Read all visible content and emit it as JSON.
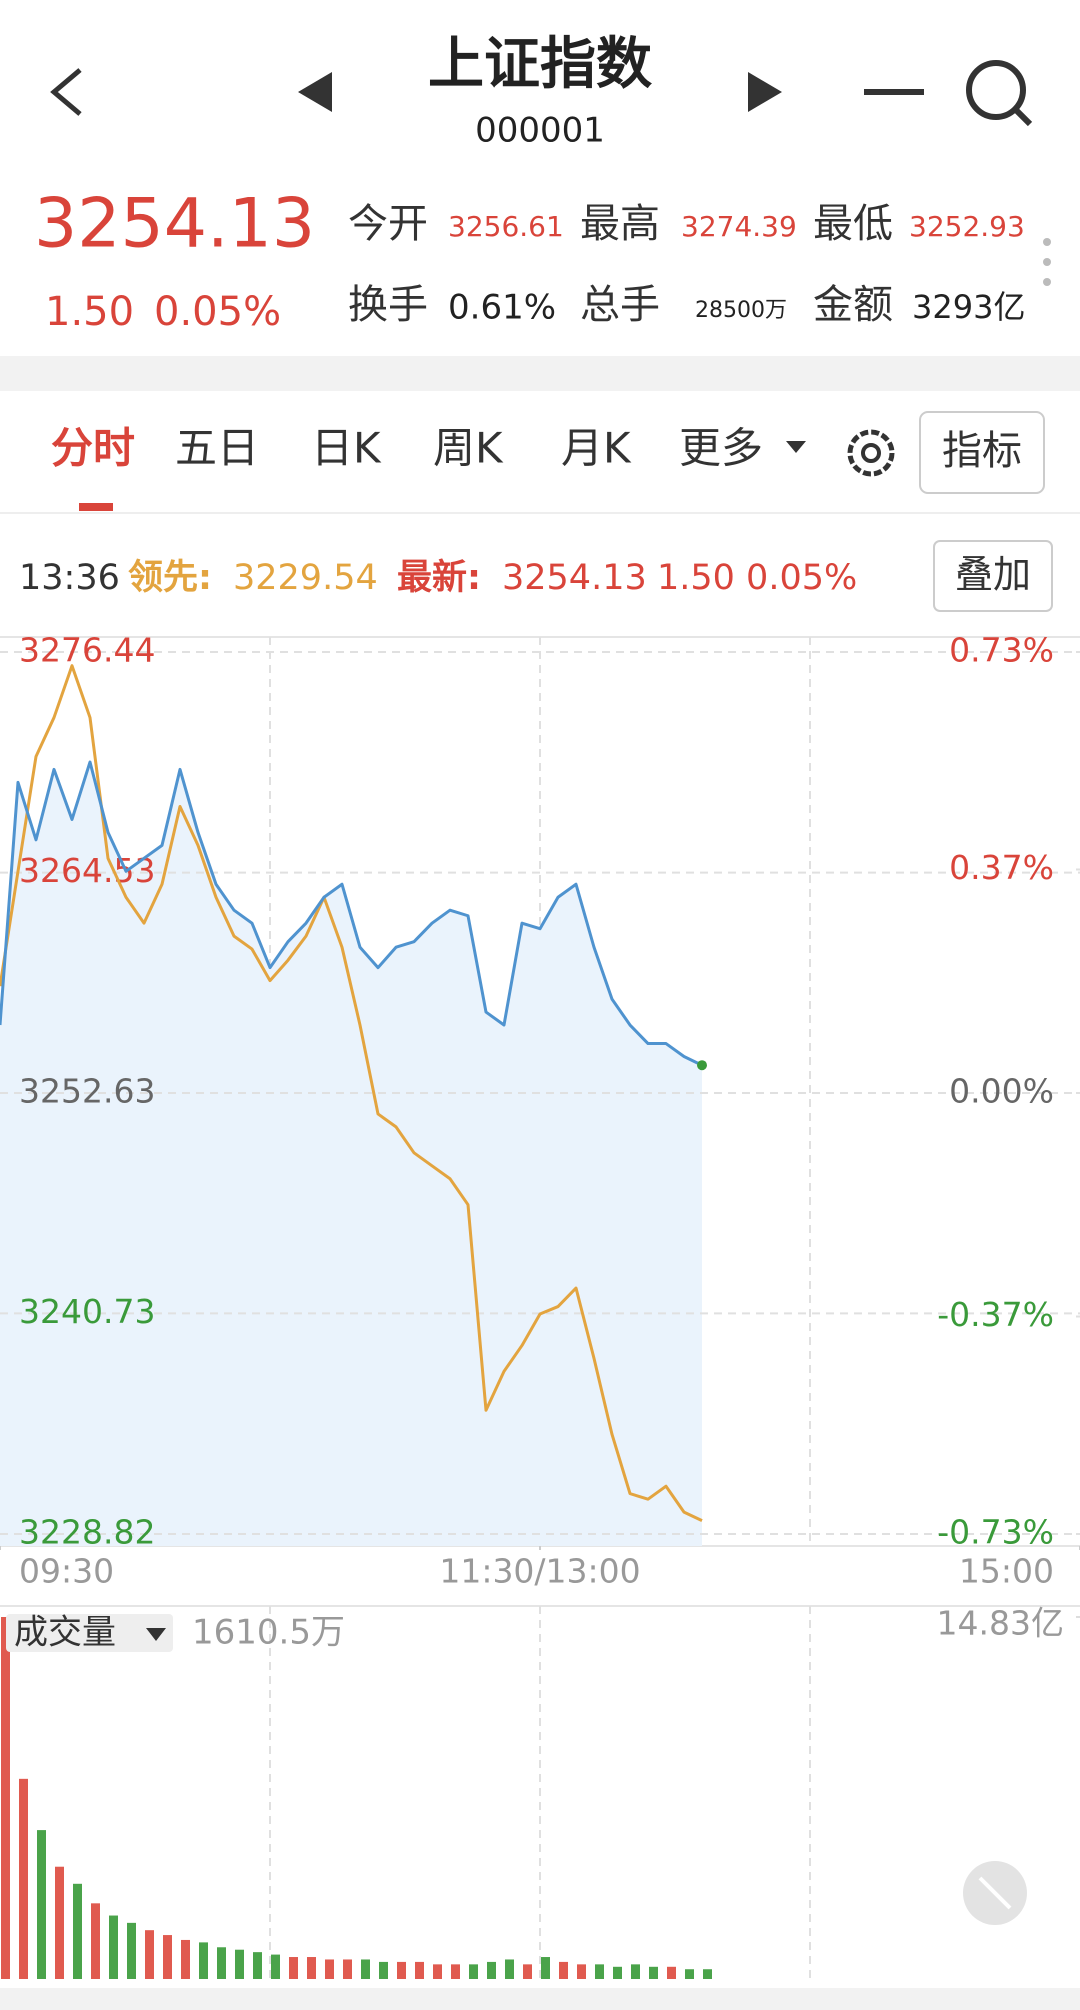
{
  "nav": {
    "title": "上证指数",
    "code": "000001"
  },
  "quote": {
    "price": "3254.13",
    "change": "1.50",
    "change_pct": "0.05%",
    "stats": [
      {
        "label": "今开",
        "value": "3256.61"
      },
      {
        "label": "最高",
        "value": "3274.39"
      },
      {
        "label": "最低",
        "value": "3252.93"
      },
      {
        "label": "换手",
        "value": "0.61%"
      },
      {
        "label": "总手",
        "value": "28500万"
      },
      {
        "label": "金额",
        "value": "3293亿"
      }
    ]
  },
  "tabs": [
    "分时",
    "五日",
    "日K",
    "周K",
    "月K",
    "更多"
  ],
  "indicator_button": "指标",
  "info_bar": {
    "time": "13:36",
    "latest_change": "1.50 0.05%",
    "overlay_button": "叠加"
  },
  "chart_data": [
    {
      "type": "line",
      "x": [
        0,
        4,
        8,
        12,
        16,
        20,
        24,
        28,
        32,
        36,
        40,
        44,
        48,
        52,
        56,
        60,
        64,
        68,
        72,
        76,
        80,
        84,
        88,
        92,
        96,
        100,
        104,
        108,
        112,
        116,
        120,
        124,
        128,
        132,
        136,
        140,
        144,
        148,
        152,
        156
      ],
      "xlim": [
        0,
        240
      ],
      "xticks": [
        {
          "value": 0,
          "label": "09:30"
        },
        {
          "value": 120,
          "label": "11:30/13:00"
        },
        {
          "value": 240,
          "label": "15:00"
        }
      ],
      "xgrid": [
        60,
        120,
        180
      ],
      "ylim": [
        3228.82,
        3276.44
      ],
      "yticks": [
        3276.44,
        3264.53,
        3252.63,
        3240.73,
        3228.82
      ],
      "y2lim": [
        -0.73,
        0.73
      ],
      "y2ticks": [
        {
          "value": 0.73,
          "label": "0.73%"
        },
        {
          "value": 0.37,
          "label": "0.37%"
        },
        {
          "value": 0,
          "label": "0.00%"
        },
        {
          "value": -0.37,
          "label": "-0.37%"
        },
        {
          "value": -0.73,
          "label": "-0.73%"
        }
      ],
      "grid": true,
      "up_color": "#d9443a",
      "down_color": "#3a9a3a",
      "flat_color": "#666666",
      "area_color": "#eaf3fc",
      "series": [
        {
          "name": "最新:",
          "color": "#4f93cf",
          "values": [
            3256.3,
            3269.4,
            3266.3,
            3270.1,
            3267.4,
            3270.5,
            3266.7,
            3264.6,
            3265.3,
            3266.0,
            3270.1,
            3266.7,
            3263.9,
            3262.5,
            3261.8,
            3259.4,
            3260.8,
            3261.8,
            3263.2,
            3263.9,
            3260.5,
            3259.4,
            3260.5,
            3260.8,
            3261.8,
            3262.5,
            3262.2,
            3257.0,
            3256.3,
            3261.8,
            3261.5,
            3263.2,
            3263.9,
            3260.5,
            3257.7,
            3256.3,
            3255.3,
            3255.3,
            3254.6,
            3254.13
          ]
        },
        {
          "name": "领先:",
          "color": "#e3a43f",
          "values": [
            3258.4,
            3264.6,
            3270.8,
            3272.9,
            3275.7,
            3272.9,
            3265.3,
            3263.2,
            3261.8,
            3263.9,
            3268.1,
            3266.0,
            3263.2,
            3261.1,
            3260.4,
            3258.7,
            3259.8,
            3261.1,
            3263.2,
            3260.5,
            3256.3,
            3251.5,
            3250.8,
            3249.4,
            3248.7,
            3248.0,
            3246.6,
            3235.5,
            3237.6,
            3239.0,
            3240.7,
            3241.1,
            3242.1,
            3238.3,
            3234.2,
            3231.0,
            3230.7,
            3231.4,
            3230.0,
            3229.54
          ]
        }
      ]
    },
    {
      "type": "bar",
      "title": "成交量",
      "subtitle": "1610.5万",
      "x": [
        0,
        4,
        8,
        12,
        16,
        20,
        24,
        28,
        32,
        36,
        40,
        44,
        48,
        52,
        56,
        60,
        64,
        68,
        72,
        76,
        80,
        84,
        88,
        92,
        96,
        100,
        104,
        108,
        112,
        116,
        120,
        124,
        128,
        132,
        136,
        140,
        144,
        148,
        152,
        156
      ],
      "xlim": [
        0,
        240
      ],
      "ylim": [
        0,
        14.83
      ],
      "yticks": [
        {
          "value": 14.83,
          "label": "14.83亿"
        }
      ],
      "up_color": "#e05a4f",
      "down_color": "#4aa34a",
      "values": [
        14.83,
        8.2,
        6.1,
        4.6,
        3.9,
        3.1,
        2.6,
        2.3,
        2.0,
        1.8,
        1.6,
        1.5,
        1.3,
        1.2,
        1.1,
        1.0,
        0.9,
        0.9,
        0.8,
        0.8,
        0.8,
        0.7,
        0.7,
        0.7,
        0.6,
        0.6,
        0.6,
        0.7,
        0.8,
        0.6,
        0.9,
        0.7,
        0.6,
        0.6,
        0.5,
        0.6,
        0.5,
        0.5,
        0.4,
        0.4
      ]
    }
  ]
}
